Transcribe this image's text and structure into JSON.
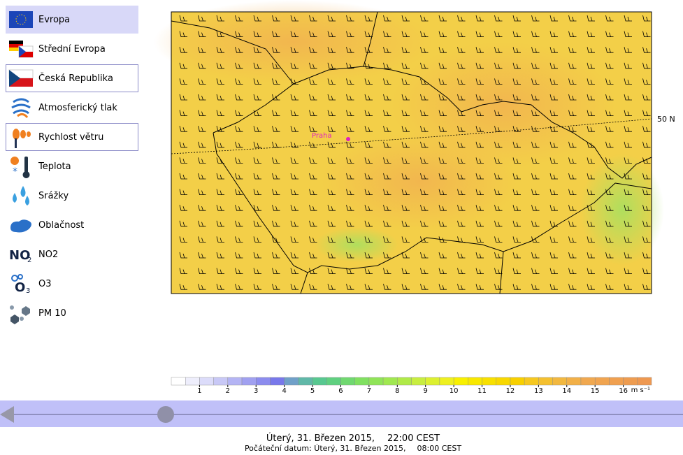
{
  "menu": {
    "items": [
      "Evropa",
      "Střední Evropa",
      "Česká Republika",
      "Atmosferický tlak",
      "Rychlost větru",
      "Teplota",
      "Srážky",
      "Oblačnost",
      "NO2",
      "O3",
      "PM 10"
    ]
  },
  "map": {
    "latitude_label": "50 N",
    "city_label": "Praha"
  },
  "colorbar": {
    "labels": [
      1,
      2,
      3,
      4,
      5,
      6,
      7,
      8,
      9,
      10,
      11,
      12,
      13,
      14,
      15,
      16
    ],
    "unit": "m s⁻¹"
  },
  "footer": {
    "date": "Úterý, 31. Březen 2015,",
    "time": "22:00 CEST",
    "start_prefix": "Počáteční datum: Úterý, 31. Březen 2015,",
    "start_time": "08:00 CEST"
  }
}
